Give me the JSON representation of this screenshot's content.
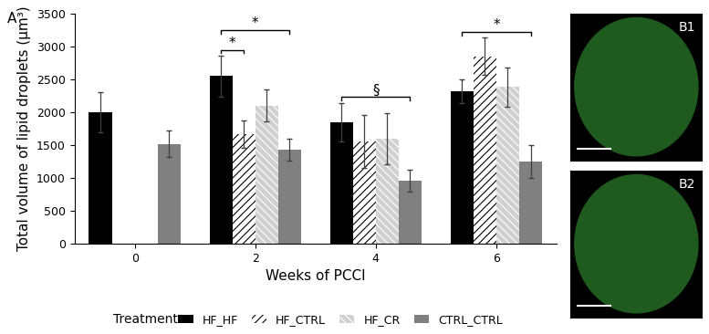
{
  "chart_data": {
    "type": "bar",
    "panel_label": "A",
    "x_label": "Weeks of PCCI",
    "y_label": "Total volume of lipid droplets (µm³)",
    "categories": [
      "0",
      "2",
      "4",
      "6"
    ],
    "series": [
      {
        "name": "HF_HF",
        "color": "#000000",
        "values": [
          2000,
          2550,
          1850,
          2320
        ],
        "errors": [
          300,
          310,
          290,
          180
        ]
      },
      {
        "name": "HF_CTRL",
        "color": "#ffffff",
        "values": [
          null,
          1670,
          1550,
          2850
        ],
        "errors": [
          null,
          210,
          400,
          280
        ]
      },
      {
        "name": "HF_CR",
        "color": "#d0d0d0",
        "values": [
          null,
          2100,
          1600,
          2380
        ],
        "errors": [
          null,
          240,
          390,
          300
        ]
      },
      {
        "name": "CTRL_CTRL",
        "color": "#808080",
        "values": [
          1520,
          1430,
          960,
          1250
        ],
        "errors": [
          200,
          160,
          170,
          250
        ]
      }
    ],
    "ylim": [
      0,
      3500
    ],
    "yticks": [
      0,
      500,
      1000,
      1500,
      2000,
      2500,
      3000,
      3500
    ],
    "legend": "lower center",
    "legend_title": "Treatment",
    "annotations": [
      {
        "category": "2",
        "from": "HF_HF",
        "to": "HF_CTRL",
        "text": "*"
      },
      {
        "category": "2",
        "from": "HF_HF",
        "to": "CTRL_CTRL",
        "text": "*"
      },
      {
        "category": "4",
        "from": "HF_HF",
        "to": "CTRL_CTRL",
        "text": "§"
      },
      {
        "category": "6",
        "from": "HF_HF",
        "to": "CTRL_CTRL",
        "text": "*"
      }
    ]
  },
  "images": [
    {
      "label": "B1"
    },
    {
      "label": "B2"
    }
  ]
}
